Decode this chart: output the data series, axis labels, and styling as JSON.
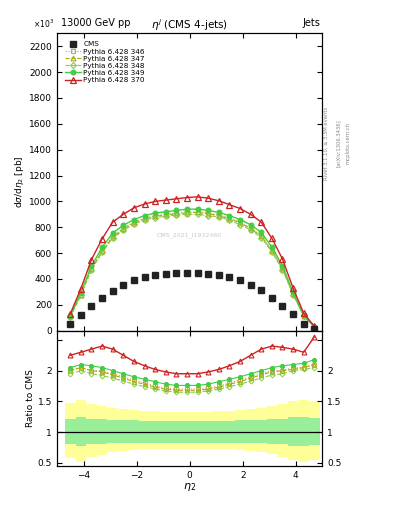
{
  "title_top_left": "13000 GeV pp",
  "title_top_right": "Jets",
  "plot_title": "$\\eta^j$ (CMS 4-jets)",
  "ylabel_main": "d$\\sigma$/d$\\eta_2$ [pb]",
  "ylabel_ratio": "Ratio to CMS",
  "xlabel": "$\\eta_2$",
  "watermark": "CMS_2021_I1932460",
  "rivet_text": "Rivet 3.1.10, ≥ 3.3M events",
  "arxiv_text": "[arXiv:1306.3436]",
  "mcplots_text": "mcplots.cern.ch",
  "cms_eta": [
    -4.5,
    -4.1,
    -3.7,
    -3.3,
    -2.9,
    -2.5,
    -2.1,
    -1.7,
    -1.3,
    -0.9,
    -0.5,
    -0.1,
    0.3,
    0.7,
    1.1,
    1.5,
    1.9,
    2.3,
    2.7,
    3.1,
    3.5,
    3.9,
    4.3,
    4.7
  ],
  "cms_y": [
    50,
    120,
    190,
    250,
    310,
    350,
    390,
    415,
    430,
    440,
    445,
    445,
    445,
    440,
    430,
    415,
    395,
    355,
    315,
    255,
    195,
    130,
    55,
    15
  ],
  "p346_eta": [
    -4.5,
    -4.1,
    -3.7,
    -3.3,
    -2.9,
    -2.5,
    -2.1,
    -1.7,
    -1.3,
    -0.9,
    -0.5,
    -0.1,
    0.3,
    0.7,
    1.1,
    1.5,
    1.9,
    2.3,
    2.7,
    3.1,
    3.5,
    3.9,
    4.3,
    4.7
  ],
  "p346_y": [
    110,
    280,
    480,
    620,
    730,
    790,
    840,
    870,
    890,
    900,
    910,
    920,
    920,
    910,
    895,
    870,
    840,
    795,
    735,
    625,
    485,
    285,
    115,
    30
  ],
  "p347_eta": [
    -4.5,
    -4.1,
    -3.7,
    -3.3,
    -2.9,
    -2.5,
    -2.1,
    -1.7,
    -1.3,
    -0.9,
    -0.5,
    -0.1,
    0.3,
    0.7,
    1.1,
    1.5,
    1.9,
    2.3,
    2.7,
    3.1,
    3.5,
    3.9,
    4.3,
    4.7
  ],
  "p347_y": [
    110,
    280,
    480,
    615,
    725,
    785,
    835,
    865,
    885,
    895,
    905,
    910,
    915,
    905,
    890,
    865,
    835,
    790,
    730,
    620,
    480,
    285,
    115,
    30
  ],
  "p348_eta": [
    -4.5,
    -4.1,
    -3.7,
    -3.3,
    -2.9,
    -2.5,
    -2.1,
    -1.7,
    -1.3,
    -0.9,
    -0.5,
    -0.1,
    0.3,
    0.7,
    1.1,
    1.5,
    1.9,
    2.3,
    2.7,
    3.1,
    3.5,
    3.9,
    4.3,
    4.7
  ],
  "p348_y": [
    108,
    275,
    470,
    605,
    715,
    775,
    825,
    855,
    875,
    885,
    895,
    900,
    900,
    890,
    880,
    855,
    820,
    780,
    720,
    610,
    472,
    280,
    113,
    28
  ],
  "p349_eta": [
    -4.5,
    -4.1,
    -3.7,
    -3.3,
    -2.9,
    -2.5,
    -2.1,
    -1.7,
    -1.3,
    -0.9,
    -0.5,
    -0.1,
    0.3,
    0.7,
    1.1,
    1.5,
    1.9,
    2.3,
    2.7,
    3.1,
    3.5,
    3.9,
    4.3,
    4.7
  ],
  "p349_y": [
    115,
    295,
    500,
    645,
    755,
    815,
    860,
    890,
    910,
    920,
    930,
    940,
    940,
    930,
    915,
    890,
    860,
    820,
    760,
    648,
    502,
    298,
    118,
    32
  ],
  "p370_eta": [
    -4.5,
    -4.1,
    -3.7,
    -3.3,
    -2.9,
    -2.5,
    -2.1,
    -1.7,
    -1.3,
    -0.9,
    -0.5,
    -0.1,
    0.3,
    0.7,
    1.1,
    1.5,
    1.9,
    2.3,
    2.7,
    3.1,
    3.5,
    3.9,
    4.3,
    4.7
  ],
  "p370_y": [
    130,
    325,
    550,
    710,
    840,
    900,
    950,
    980,
    1000,
    1010,
    1020,
    1030,
    1035,
    1025,
    1005,
    975,
    945,
    900,
    840,
    715,
    555,
    330,
    135,
    35
  ],
  "ratio_346": [
    2.0,
    2.05,
    2.0,
    2.0,
    1.95,
    1.9,
    1.85,
    1.8,
    1.75,
    1.72,
    1.7,
    1.7,
    1.7,
    1.72,
    1.75,
    1.8,
    1.85,
    1.9,
    1.95,
    2.0,
    2.0,
    2.05,
    2.05,
    2.1
  ],
  "ratio_347": [
    2.0,
    2.05,
    2.0,
    1.98,
    1.93,
    1.88,
    1.82,
    1.78,
    1.73,
    1.7,
    1.68,
    1.68,
    1.68,
    1.7,
    1.73,
    1.78,
    1.82,
    1.88,
    1.93,
    1.98,
    2.0,
    2.02,
    2.05,
    2.1
  ],
  "ratio_348": [
    1.95,
    2.0,
    1.95,
    1.92,
    1.88,
    1.83,
    1.78,
    1.74,
    1.7,
    1.67,
    1.65,
    1.65,
    1.65,
    1.67,
    1.7,
    1.74,
    1.78,
    1.83,
    1.88,
    1.93,
    1.95,
    2.0,
    2.02,
    2.05
  ],
  "ratio_349": [
    2.05,
    2.1,
    2.08,
    2.05,
    2.0,
    1.95,
    1.9,
    1.86,
    1.82,
    1.78,
    1.76,
    1.76,
    1.76,
    1.78,
    1.82,
    1.86,
    1.9,
    1.95,
    2.0,
    2.05,
    2.08,
    2.1,
    2.12,
    2.18
  ],
  "ratio_370": [
    2.25,
    2.3,
    2.35,
    2.4,
    2.35,
    2.25,
    2.15,
    2.08,
    2.02,
    1.98,
    1.95,
    1.95,
    1.95,
    1.98,
    2.02,
    2.08,
    2.15,
    2.25,
    2.35,
    2.4,
    2.38,
    2.35,
    2.3,
    2.55
  ],
  "color_346": "#c8a060",
  "color_347": "#aaaa00",
  "color_348": "#88cc44",
  "color_349": "#44cc44",
  "color_370": "#cc2222",
  "color_cms": "#222222",
  "ylim_main": [
    0,
    2300
  ],
  "ylim_ratio": [
    0.45,
    2.65
  ],
  "xlim": [
    -5.0,
    5.0
  ],
  "xticks": [
    -4,
    -2,
    0,
    2,
    4
  ],
  "yticks_main": [
    0,
    200,
    400,
    600,
    800,
    1000,
    1200,
    1400,
    1600,
    1800,
    2000,
    2200
  ],
  "yticks_ratio": [
    0.5,
    1.0,
    1.5,
    2.0,
    2.5
  ],
  "band_green_lo": 0.82,
  "band_green_hi": 1.2,
  "band_yellow_lo_vals": [
    0.58,
    0.52,
    0.6,
    0.63,
    0.67,
    0.7,
    0.71,
    0.72,
    0.72,
    0.72,
    0.72,
    0.72,
    0.72,
    0.72,
    0.72,
    0.72,
    0.71,
    0.7,
    0.68,
    0.65,
    0.6,
    0.55,
    0.52,
    0.55
  ],
  "band_yellow_hi_vals": [
    1.48,
    1.52,
    1.46,
    1.42,
    1.4,
    1.38,
    1.36,
    1.35,
    1.34,
    1.33,
    1.32,
    1.32,
    1.32,
    1.33,
    1.34,
    1.35,
    1.36,
    1.38,
    1.4,
    1.42,
    1.46,
    1.5,
    1.52,
    1.5
  ],
  "band_green_lo_vals": [
    0.8,
    0.78,
    0.8,
    0.81,
    0.82,
    0.82,
    0.83,
    0.83,
    0.83,
    0.83,
    0.83,
    0.83,
    0.83,
    0.83,
    0.83,
    0.83,
    0.83,
    0.82,
    0.82,
    0.81,
    0.8,
    0.78,
    0.78,
    0.79
  ],
  "band_green_hi_vals": [
    1.22,
    1.24,
    1.22,
    1.21,
    1.2,
    1.19,
    1.19,
    1.18,
    1.18,
    1.18,
    1.18,
    1.18,
    1.18,
    1.18,
    1.18,
    1.18,
    1.19,
    1.19,
    1.2,
    1.21,
    1.22,
    1.24,
    1.24,
    1.23
  ]
}
